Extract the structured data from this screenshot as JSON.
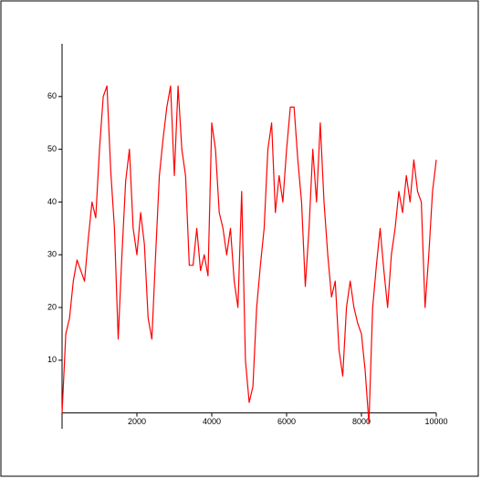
{
  "chart_data": {
    "type": "line",
    "color": "#ff0000",
    "x": [
      0,
      100,
      200,
      300,
      400,
      500,
      600,
      700,
      800,
      900,
      1000,
      1100,
      1200,
      1300,
      1400,
      1500,
      1600,
      1700,
      1800,
      1900,
      2000,
      2100,
      2200,
      2300,
      2400,
      2500,
      2600,
      2700,
      2800,
      2900,
      3000,
      3100,
      3200,
      3300,
      3400,
      3500,
      3600,
      3700,
      3800,
      3900,
      4000,
      4100,
      4200,
      4300,
      4400,
      4500,
      4600,
      4700,
      4800,
      4900,
      5000,
      5100,
      5200,
      5300,
      5400,
      5500,
      5600,
      5700,
      5800,
      5900,
      6000,
      6100,
      6200,
      6300,
      6400,
      6500,
      6600,
      6700,
      6800,
      6900,
      7000,
      7100,
      7200,
      7300,
      7400,
      7500,
      7600,
      7700,
      7800,
      7900,
      8000,
      8100,
      8200,
      8300,
      8400,
      8500,
      8600,
      8700,
      8800,
      8900,
      9000,
      9100,
      9200,
      9300,
      9400,
      9500,
      9600,
      9700,
      9800,
      9900,
      10000
    ],
    "values": [
      0,
      15,
      18,
      25,
      29,
      27,
      25,
      33,
      40,
      37,
      50,
      60,
      62,
      46,
      35,
      14,
      30,
      44,
      50,
      35,
      30,
      38,
      32,
      18,
      14,
      30,
      45,
      52,
      58,
      62,
      45,
      62,
      50,
      45,
      28,
      28,
      35,
      27,
      30,
      26,
      55,
      50,
      38,
      35,
      30,
      35,
      25,
      20,
      42,
      10,
      2,
      5,
      20,
      28,
      35,
      50,
      55,
      38,
      45,
      40,
      50,
      58,
      58,
      48,
      40,
      24,
      35,
      50,
      40,
      55,
      40,
      30,
      22,
      25,
      12,
      7,
      20,
      25,
      20,
      17,
      15,
      8,
      -2,
      20,
      28,
      35,
      27,
      20,
      30,
      35,
      42,
      38,
      45,
      40,
      48,
      42,
      40,
      20,
      30,
      42,
      48
    ],
    "xlim": [
      0,
      10000
    ],
    "ylim": [
      -3,
      70
    ],
    "xticks": [
      2000,
      4000,
      6000,
      8000,
      10000
    ],
    "yticks": [
      10,
      20,
      30,
      40,
      50,
      60
    ]
  }
}
